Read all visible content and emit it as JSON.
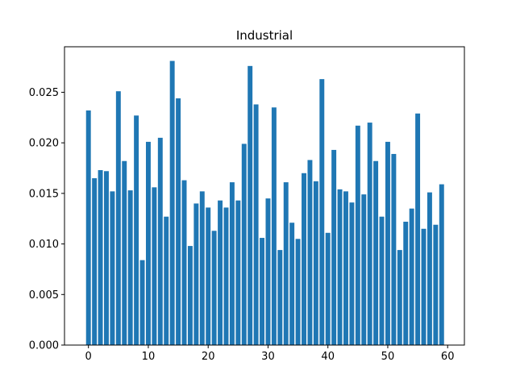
{
  "chart_data": {
    "type": "bar",
    "title": "Industrial",
    "xlabel": "",
    "ylabel": "",
    "xlim": [
      -4,
      62.8
    ],
    "ylim": [
      0,
      0.0295
    ],
    "xticks": [
      0,
      10,
      20,
      30,
      40,
      50,
      60
    ],
    "yticks": [
      0.0,
      0.005,
      0.01,
      0.015,
      0.02,
      0.025
    ],
    "ytick_labels": [
      "0.000",
      "0.005",
      "0.010",
      "0.015",
      "0.020",
      "0.025"
    ],
    "bar_color": "#1f77b4",
    "grid": false,
    "x": [
      0,
      1,
      2,
      3,
      4,
      5,
      6,
      7,
      8,
      9,
      10,
      11,
      12,
      13,
      14,
      15,
      16,
      17,
      18,
      19,
      20,
      21,
      22,
      23,
      24,
      25,
      26,
      27,
      28,
      29,
      30,
      31,
      32,
      33,
      34,
      35,
      36,
      37,
      38,
      39,
      40,
      41,
      42,
      43,
      44,
      45,
      46,
      47,
      48,
      49,
      50,
      51,
      52,
      53,
      54,
      55,
      56,
      57,
      58,
      59
    ],
    "values": [
      0.0232,
      0.0165,
      0.0173,
      0.0172,
      0.0152,
      0.0251,
      0.0182,
      0.0153,
      0.0227,
      0.0084,
      0.0201,
      0.0156,
      0.0205,
      0.0127,
      0.0281,
      0.0244,
      0.0163,
      0.0098,
      0.014,
      0.0152,
      0.0136,
      0.0113,
      0.0143,
      0.0136,
      0.0161,
      0.0143,
      0.0199,
      0.0276,
      0.0238,
      0.0106,
      0.0145,
      0.0235,
      0.0094,
      0.0161,
      0.0121,
      0.0105,
      0.017,
      0.0183,
      0.0162,
      0.0263,
      0.0111,
      0.0193,
      0.0154,
      0.0152,
      0.0141,
      0.0217,
      0.0149,
      0.022,
      0.0182,
      0.0127,
      0.0201,
      0.0189,
      0.0094,
      0.0122,
      0.0135,
      0.0229,
      0.0115,
      0.0151,
      0.0119,
      0.0159
    ]
  }
}
